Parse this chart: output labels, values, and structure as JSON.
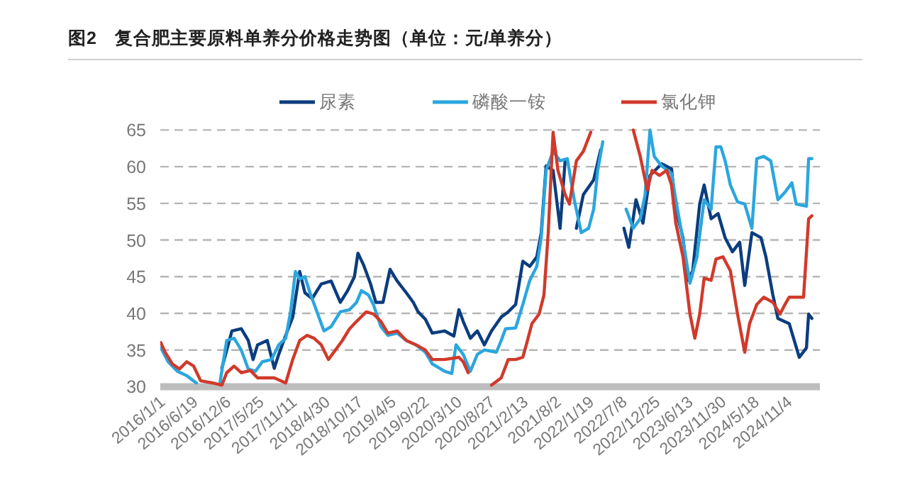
{
  "chart_data": {
    "type": "line",
    "title": "图2　复合肥主要原料单养分价格走势图（单位：元/单养分）",
    "xlim": [
      "2016-01-01",
      "2025-04-20"
    ],
    "ylim": [
      30,
      65
    ],
    "yticks": [
      30,
      35,
      40,
      45,
      50,
      55,
      60,
      65
    ],
    "xticks": [
      {
        "value": "2016-01-01",
        "label": "2016/1/1"
      },
      {
        "value": "2016-06-19",
        "label": "2016/6/19"
      },
      {
        "value": "2016-12-06",
        "label": "2016/12/6"
      },
      {
        "value": "2017-05-25",
        "label": "2017/5/25"
      },
      {
        "value": "2017-11-11",
        "label": "2017/11/11"
      },
      {
        "value": "2018-04-30",
        "label": "2018/4/30"
      },
      {
        "value": "2018-10-17",
        "label": "2018/10/17"
      },
      {
        "value": "2019-04-05",
        "label": "2019/4/5"
      },
      {
        "value": "2019-09-22",
        "label": "2019/9/22"
      },
      {
        "value": "2020-03-10",
        "label": "2020/3/10"
      },
      {
        "value": "2020-08-27",
        "label": "2020/8/27"
      },
      {
        "value": "2021-02-13",
        "label": "2021/2/13"
      },
      {
        "value": "2021-08-02",
        "label": "2021/8/2"
      },
      {
        "value": "2022-01-19",
        "label": "2022/1/19"
      },
      {
        "value": "2022-07-08",
        "label": "2022/7/8"
      },
      {
        "value": "2022-12-25",
        "label": "2022/12/25"
      },
      {
        "value": "2023-06-13",
        "label": "2023/6/13"
      },
      {
        "value": "2023-11-30",
        "label": "2023/11/30"
      },
      {
        "value": "2024-05-18",
        "label": "2024/5/18"
      },
      {
        "value": "2024-11-04",
        "label": "2024/11/4"
      }
    ],
    "grid": "y",
    "legend": "top",
    "series": [
      {
        "name": "尿素",
        "color": "#0b3d7e",
        "x": [
          "2016-11-13",
          "2017-01-04",
          "2017-02-21",
          "2017-03-29",
          "2017-04-23",
          "2017-05-16",
          "2017-07-05",
          "2017-08-10",
          "2017-09-02",
          "2017-10-08",
          "2017-11-13",
          "2017-12-19",
          "2018-01-15",
          "2018-02-21",
          "2018-04-09",
          "2018-05-30",
          "2018-07-16",
          "2018-08-21",
          "2018-09-27",
          "2018-10-15",
          "2018-11-13",
          "2018-12-19",
          "2019-01-15",
          "2019-02-21",
          "2019-03-29",
          "2019-05-05",
          "2019-06-21",
          "2019-07-27",
          "2019-08-21",
          "2019-09-27",
          "2019-11-02",
          "2020-01-04",
          "2020-02-21",
          "2020-03-18",
          "2020-04-09",
          "2020-05-16",
          "2020-06-21",
          "2020-07-27",
          "2020-09-02",
          "2020-10-22",
          "2020-11-27",
          "2021-01-04",
          "2021-02-10",
          "2021-03-18",
          "2021-04-23",
          "2021-05-16",
          "2021-06-10",
          "2021-07-16",
          "2021-08-21",
          "2021-09-16",
          "2021-10-08",
          "2021-11-13",
          "2021-12-19",
          "2022-02-10",
          "2022-03-18",
          "2022-04-09",
          "2022-06-21",
          "2022-07-16",
          "2022-08-10",
          "2022-09-16",
          "2022-10-22",
          "2022-11-27",
          "2023-01-26",
          "2023-03-18",
          "2023-04-09",
          "2023-05-16",
          "2023-06-10",
          "2023-07-05",
          "2023-08-10",
          "2023-09-02",
          "2023-10-08",
          "2023-11-13",
          "2023-12-19",
          "2024-01-26",
          "2024-03-03",
          "2024-03-29",
          "2024-05-05",
          "2024-06-21",
          "2024-07-16",
          "2024-08-21",
          "2024-09-16",
          "2024-11-13",
          "2025-01-04",
          "2025-02-10",
          "2025-02-21",
          "2025-03-10"
        ],
        "values": [
          32.5,
          37.6,
          37.9,
          36.3,
          33.7,
          35.7,
          36.3,
          32.5,
          34.4,
          37.0,
          39.5,
          45.7,
          42.8,
          42.0,
          44.0,
          44.4,
          41.5,
          43.0,
          45.0,
          48.2,
          46.6,
          44.0,
          41.5,
          41.5,
          46.0,
          44.4,
          42.8,
          41.5,
          40.2,
          39.2,
          37.3,
          37.6,
          36.9,
          40.5,
          38.9,
          36.6,
          37.6,
          35.7,
          37.6,
          39.5,
          40.2,
          41.2,
          47.1,
          46.4,
          47.7,
          51.0,
          60.1,
          59.5,
          51.6,
          60.8,
          null,
          51.6,
          56.2,
          58.2,
          62.3,
          null,
          null,
          51.6,
          49.0,
          55.5,
          52.3,
          58.8,
          60.4,
          59.7,
          54.2,
          50.3,
          44.5,
          45.8,
          54.9,
          57.5,
          52.9,
          53.6,
          50.3,
          48.4,
          49.7,
          43.8,
          51.0,
          50.3,
          47.7,
          42.5,
          39.3,
          38.6,
          34.0,
          35.3,
          39.9,
          39.3
        ]
      },
      {
        "name": "磷酸一铵",
        "color": "#2ba6de",
        "x": [
          "2016-01-04",
          "2016-02-10",
          "2016-03-29",
          "2016-05-16",
          "2016-07-05",
          "2016-08-21",
          "2016-11-02",
          "2016-12-08",
          "2017-01-15",
          "2017-02-21",
          "2017-03-29",
          "2017-05-05",
          "2017-06-10",
          "2017-07-27",
          "2017-09-02",
          "2017-10-08",
          "2017-11-02",
          "2017-11-27",
          "2017-12-19",
          "2018-01-15",
          "2018-02-10",
          "2018-03-18",
          "2018-04-23",
          "2018-05-30",
          "2018-07-16",
          "2018-09-02",
          "2018-10-08",
          "2018-11-02",
          "2018-12-08",
          "2019-01-04",
          "2019-02-10",
          "2019-03-18",
          "2019-05-05",
          "2019-06-21",
          "2019-08-10",
          "2019-09-27",
          "2019-11-02",
          "2020-01-04",
          "2020-02-10",
          "2020-03-03",
          "2020-04-09",
          "2020-05-16",
          "2020-06-21",
          "2020-07-27",
          "2020-09-27",
          "2020-10-22",
          "2020-11-13",
          "2021-01-04",
          "2021-02-10",
          "2021-03-18",
          "2021-04-23",
          "2021-05-16",
          "2021-06-10",
          "2021-07-16",
          "2021-08-21",
          "2021-09-27",
          "2021-11-02",
          "2021-12-08",
          "2022-01-15",
          "2022-02-10",
          "2022-03-03",
          "2022-03-29",
          "2022-04-23",
          "2022-07-16",
          "2022-07-27",
          "2022-09-02",
          "2022-10-08",
          "2022-11-02",
          "2022-11-27",
          "2022-12-19",
          "2023-01-26",
          "2023-03-18",
          "2023-04-09",
          "2023-05-05",
          "2023-05-30",
          "2023-06-21",
          "2023-07-27",
          "2023-09-02",
          "2023-10-08",
          "2023-11-02",
          "2023-11-27",
          "2023-12-19",
          "2024-01-15",
          "2024-02-21",
          "2024-03-29",
          "2024-05-05",
          "2024-05-30",
          "2024-07-05",
          "2024-08-10",
          "2024-09-16",
          "2024-10-22",
          "2024-11-27",
          "2024-12-19",
          "2025-02-10",
          "2025-02-21",
          "2025-03-10"
        ],
        "values": [
          35.3,
          33.4,
          32.1,
          31.5,
          30.5,
          null,
          30.3,
          36.3,
          36.6,
          35.0,
          32.4,
          32.1,
          33.4,
          33.7,
          35.7,
          36.6,
          40.2,
          45.7,
          44.7,
          45.0,
          42.8,
          40.2,
          37.6,
          38.2,
          40.2,
          40.5,
          41.5,
          43.1,
          42.5,
          41.1,
          38.2,
          37.0,
          37.3,
          36.3,
          35.7,
          34.7,
          33.1,
          32.1,
          31.8,
          35.7,
          34.4,
          32.1,
          34.4,
          35.0,
          34.7,
          36.3,
          37.9,
          38.0,
          41.2,
          44.5,
          46.4,
          50.3,
          59.5,
          62.1,
          60.8,
          61.1,
          55.5,
          51.0,
          51.6,
          54.2,
          59.5,
          63.4,
          null,
          null,
          54.2,
          51.6,
          52.9,
          56.2,
          65.0,
          61.4,
          60.1,
          59.1,
          55.5,
          51.6,
          47.7,
          44.1,
          47.7,
          55.5,
          54.2,
          62.7,
          62.7,
          60.8,
          57.5,
          55.2,
          54.9,
          51.6,
          61.1,
          61.4,
          60.8,
          55.5,
          56.5,
          57.8,
          54.9,
          54.6,
          61.1,
          61.1
        ]
      },
      {
        "name": "氯化钾",
        "color": "#d03a2c",
        "x": [
          "2016-01-04",
          "2016-01-26",
          "2016-03-03",
          "2016-04-09",
          "2016-05-16",
          "2016-06-21",
          "2016-07-27",
          "2016-09-27",
          "2016-11-13",
          "2016-12-08",
          "2017-01-15",
          "2017-02-21",
          "2017-04-09",
          "2017-05-16",
          "2017-08-10",
          "2017-10-08",
          "2017-11-13",
          "2017-12-19",
          "2018-01-26",
          "2018-03-03",
          "2018-04-09",
          "2018-05-16",
          "2018-06-21",
          "2018-07-27",
          "2018-09-02",
          "2018-10-08",
          "2018-11-27",
          "2019-01-04",
          "2019-02-10",
          "2019-03-18",
          "2019-05-05",
          "2019-06-21",
          "2019-08-10",
          "2019-09-27",
          "2019-11-02",
          "2020-01-04",
          "2020-03-18",
          "2020-04-09",
          "2020-05-05",
          "2020-05-30",
          "2020-09-02",
          "2020-10-22",
          "2020-11-27",
          "2021-01-04",
          "2021-02-10",
          "2021-03-03",
          "2021-03-29",
          "2021-05-05",
          "2021-05-30",
          "2021-06-21",
          "2021-07-16",
          "2021-08-10",
          "2021-09-16",
          "2021-10-08",
          "2021-11-13",
          "2021-12-19",
          "2022-01-26",
          "2022-02-21",
          "2022-08-21",
          "2022-09-02",
          "2022-10-08",
          "2022-11-13",
          "2022-12-08",
          "2023-01-15",
          "2023-02-21",
          "2023-03-18",
          "2023-04-09",
          "2023-05-16",
          "2023-06-21",
          "2023-07-16",
          "2023-08-10",
          "2023-09-02",
          "2023-10-08",
          "2023-11-02",
          "2023-12-08",
          "2024-01-15",
          "2024-02-21",
          "2024-03-29",
          "2024-04-23",
          "2024-05-30",
          "2024-07-05",
          "2024-08-21",
          "2024-09-27",
          "2024-10-22",
          "2024-11-13",
          "2025-01-26",
          "2025-02-21",
          "2025-03-10"
        ],
        "values": [
          36.0,
          34.7,
          33.1,
          32.4,
          33.4,
          32.8,
          30.8,
          30.5,
          30.2,
          31.9,
          32.8,
          31.9,
          32.2,
          31.2,
          31.2,
          30.5,
          33.7,
          36.3,
          37.0,
          36.6,
          35.7,
          33.7,
          35.0,
          36.3,
          37.9,
          38.9,
          40.2,
          39.9,
          38.9,
          37.3,
          37.6,
          36.3,
          35.7,
          35.0,
          33.7,
          33.7,
          34.0,
          33.4,
          31.9,
          null,
          30.2,
          31.2,
          33.7,
          33.7,
          34.0,
          36.0,
          38.6,
          39.9,
          42.5,
          51.0,
          64.7,
          59.5,
          56.2,
          54.9,
          60.8,
          62.1,
          64.7,
          null,
          null,
          65.0,
          61.4,
          56.8,
          59.5,
          58.8,
          59.5,
          57.5,
          52.3,
          47.7,
          39.9,
          36.6,
          39.9,
          44.8,
          44.5,
          47.4,
          47.7,
          45.8,
          39.9,
          34.7,
          38.6,
          41.2,
          42.2,
          41.5,
          39.9,
          41.2,
          42.2,
          42.2,
          52.9,
          53.3
        ]
      }
    ]
  }
}
